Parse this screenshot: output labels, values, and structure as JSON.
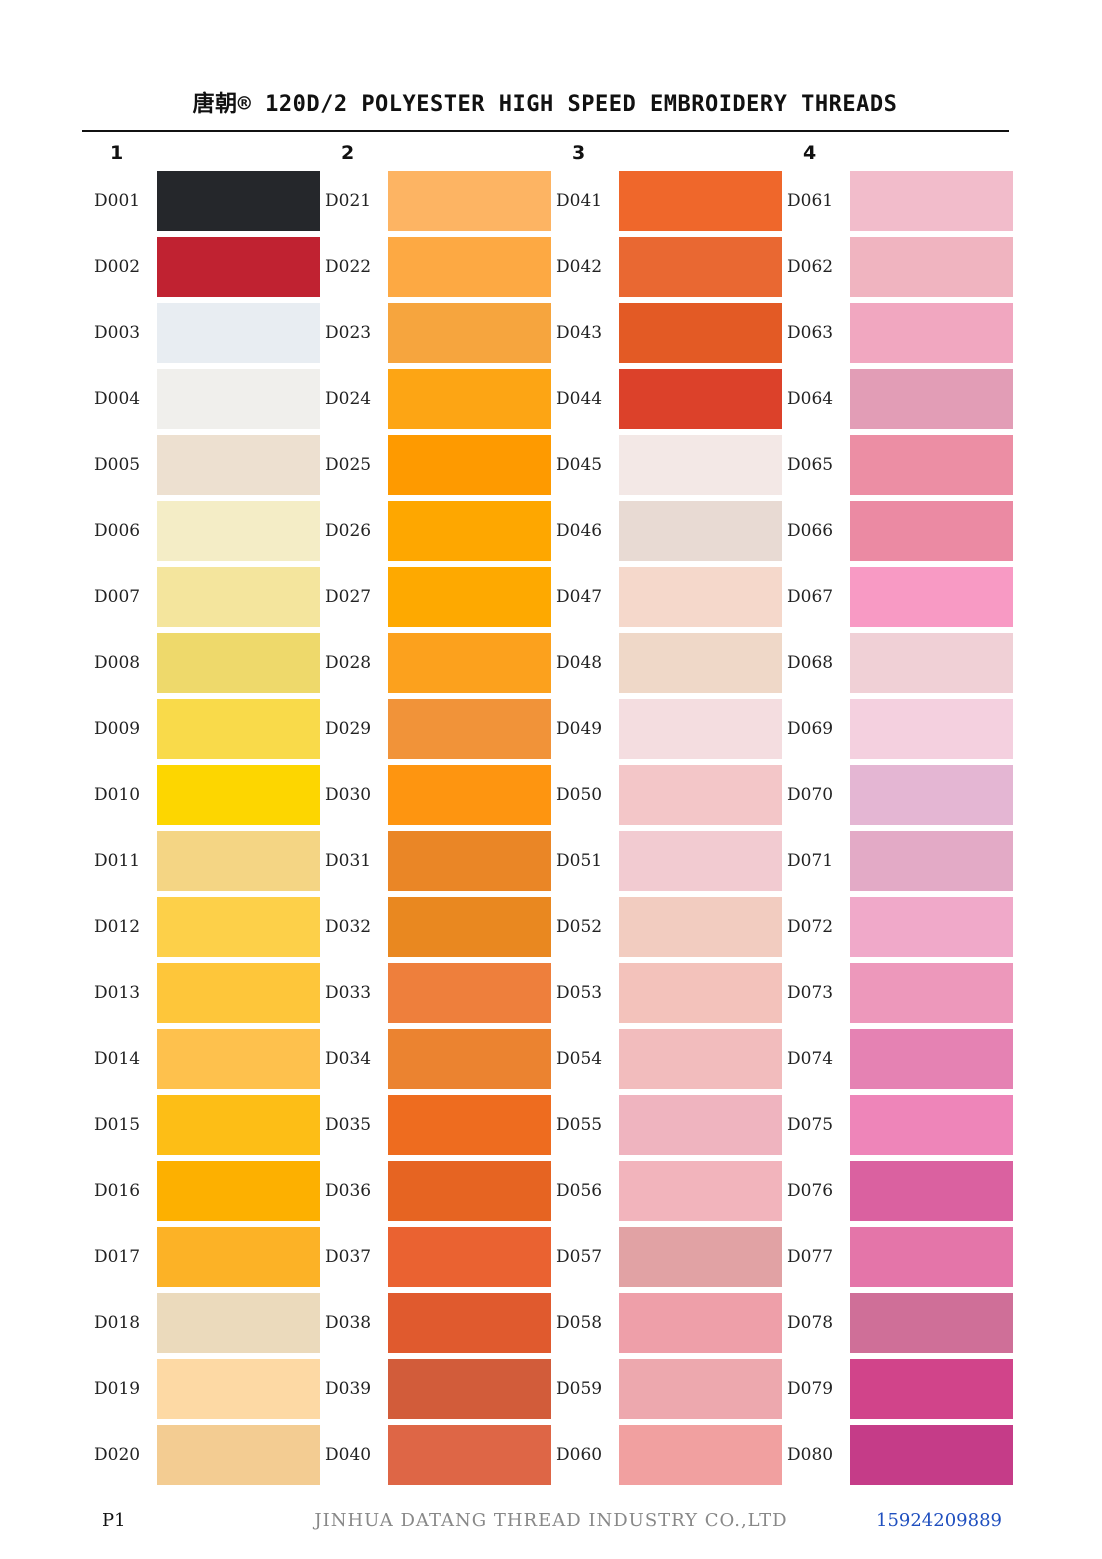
{
  "header": {
    "title": "唐朝® 120D/2 POLYESTER HIGH SPEED EMBROIDERY THREADS"
  },
  "columns": [
    {
      "label": "1",
      "items": [
        {
          "code": "D001",
          "color": "#25272b"
        },
        {
          "code": "D002",
          "color": "#c02231"
        },
        {
          "code": "D003",
          "color": "#e8edf2"
        },
        {
          "code": "D004",
          "color": "#f0efec"
        },
        {
          "code": "D005",
          "color": "#ede0d0"
        },
        {
          "code": "D006",
          "color": "#f4edc6"
        },
        {
          "code": "D007",
          "color": "#f4e59d"
        },
        {
          "code": "D008",
          "color": "#eed96b"
        },
        {
          "code": "D009",
          "color": "#f9da4a"
        },
        {
          "code": "D010",
          "color": "#fdd600"
        },
        {
          "code": "D011",
          "color": "#f4d584"
        },
        {
          "code": "D012",
          "color": "#fdd049"
        },
        {
          "code": "D013",
          "color": "#fec63a"
        },
        {
          "code": "D014",
          "color": "#fec14d"
        },
        {
          "code": "D015",
          "color": "#fdbe16"
        },
        {
          "code": "D016",
          "color": "#fdb000"
        },
        {
          "code": "D017",
          "color": "#fcb226"
        },
        {
          "code": "D018",
          "color": "#ebdabc"
        },
        {
          "code": "D019",
          "color": "#fdd9a4"
        },
        {
          "code": "D020",
          "color": "#f3cc92"
        }
      ]
    },
    {
      "label": "2",
      "items": [
        {
          "code": "D021",
          "color": "#fdb463"
        },
        {
          "code": "D022",
          "color": "#fda943"
        },
        {
          "code": "D023",
          "color": "#f6a53e"
        },
        {
          "code": "D024",
          "color": "#fda514"
        },
        {
          "code": "D025",
          "color": "#fe9a00"
        },
        {
          "code": "D026",
          "color": "#fea700"
        },
        {
          "code": "D027",
          "color": "#fea900"
        },
        {
          "code": "D028",
          "color": "#fca11d"
        },
        {
          "code": "D029",
          "color": "#f19339"
        },
        {
          "code": "D030",
          "color": "#fe9510"
        },
        {
          "code": "D031",
          "color": "#ea8626"
        },
        {
          "code": "D032",
          "color": "#e98820"
        },
        {
          "code": "D033",
          "color": "#ee7f3c"
        },
        {
          "code": "D034",
          "color": "#eb8330"
        },
        {
          "code": "D035",
          "color": "#ee6c1f"
        },
        {
          "code": "D036",
          "color": "#e66422"
        },
        {
          "code": "D037",
          "color": "#ea6231"
        },
        {
          "code": "D038",
          "color": "#e05a2e"
        },
        {
          "code": "D039",
          "color": "#d25c3a"
        },
        {
          "code": "D040",
          "color": "#de6646"
        }
      ]
    },
    {
      "label": "3",
      "items": [
        {
          "code": "D041",
          "color": "#ef672b"
        },
        {
          "code": "D042",
          "color": "#e96832"
        },
        {
          "code": "D043",
          "color": "#e35a25"
        },
        {
          "code": "D044",
          "color": "#dc412a"
        },
        {
          "code": "D045",
          "color": "#f3e8e6"
        },
        {
          "code": "D046",
          "color": "#e8dad3"
        },
        {
          "code": "D047",
          "color": "#f5d8cb"
        },
        {
          "code": "D048",
          "color": "#efd8c8"
        },
        {
          "code": "D049",
          "color": "#f4dde0"
        },
        {
          "code": "D050",
          "color": "#f3c6c8"
        },
        {
          "code": "D051",
          "color": "#f2cbd1"
        },
        {
          "code": "D052",
          "color": "#f2ccc0"
        },
        {
          "code": "D053",
          "color": "#f3c2bb"
        },
        {
          "code": "D054",
          "color": "#f2bcbd"
        },
        {
          "code": "D055",
          "color": "#efb4bf"
        },
        {
          "code": "D056",
          "color": "#f2b4bc"
        },
        {
          "code": "D057",
          "color": "#e1a2a4"
        },
        {
          "code": "D058",
          "color": "#ee9fa9"
        },
        {
          "code": "D059",
          "color": "#eda8ae"
        },
        {
          "code": "D060",
          "color": "#f1a0a0"
        }
      ]
    },
    {
      "label": "4",
      "items": [
        {
          "code": "D061",
          "color": "#f2bccb"
        },
        {
          "code": "D062",
          "color": "#f0b4c0"
        },
        {
          "code": "D063",
          "color": "#f1a7c0"
        },
        {
          "code": "D064",
          "color": "#e29db6"
        },
        {
          "code": "D065",
          "color": "#ec8ea4"
        },
        {
          "code": "D066",
          "color": "#eb8aa3"
        },
        {
          "code": "D067",
          "color": "#f89ac4"
        },
        {
          "code": "D068",
          "color": "#f0d0d6"
        },
        {
          "code": "D069",
          "color": "#f4d0df"
        },
        {
          "code": "D070",
          "color": "#e4b6d3"
        },
        {
          "code": "D071",
          "color": "#e3aac6"
        },
        {
          "code": "D072",
          "color": "#f0a9c9"
        },
        {
          "code": "D073",
          "color": "#ed98bb"
        },
        {
          "code": "D074",
          "color": "#e582b3"
        },
        {
          "code": "D075",
          "color": "#ee85b9"
        },
        {
          "code": "D076",
          "color": "#da61a0"
        },
        {
          "code": "D077",
          "color": "#e475a9"
        },
        {
          "code": "D078",
          "color": "#cf6f98"
        },
        {
          "code": "D079",
          "color": "#d1448a"
        },
        {
          "code": "D080",
          "color": "#c53c88"
        }
      ]
    }
  ],
  "footer": {
    "page": "P1",
    "company": "JINHUA DATANG THREAD INDUSTRY CO.,LTD",
    "phone": "15924209889"
  }
}
